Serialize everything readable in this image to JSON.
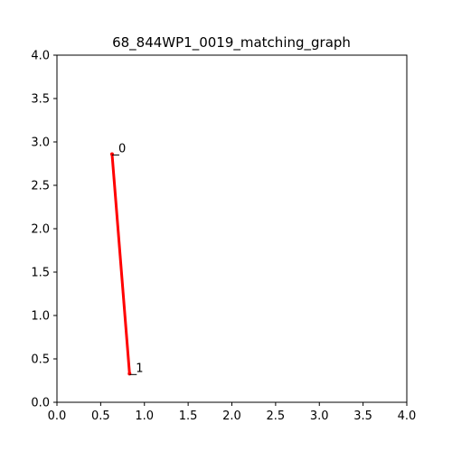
{
  "chart_data": {
    "type": "line",
    "title": "68_844WP1_0019_matching_graph",
    "xlabel": "",
    "ylabel": "",
    "xlim": [
      0.0,
      4.0
    ],
    "ylim": [
      0.0,
      4.0
    ],
    "xticks": [
      "0.0",
      "0.5",
      "1.0",
      "1.5",
      "2.0",
      "2.5",
      "3.0",
      "3.5",
      "4.0"
    ],
    "yticks": [
      "0.0",
      "0.5",
      "1.0",
      "1.5",
      "2.0",
      "2.5",
      "3.0",
      "3.5",
      "4.0"
    ],
    "grid": false,
    "nodes": [
      {
        "label": "0",
        "x": 0.63,
        "y": 2.86
      },
      {
        "label": "1",
        "x": 0.83,
        "y": 0.33
      }
    ],
    "edges": [
      {
        "from": 0,
        "to": 1,
        "color": "#ff0000"
      }
    ]
  }
}
